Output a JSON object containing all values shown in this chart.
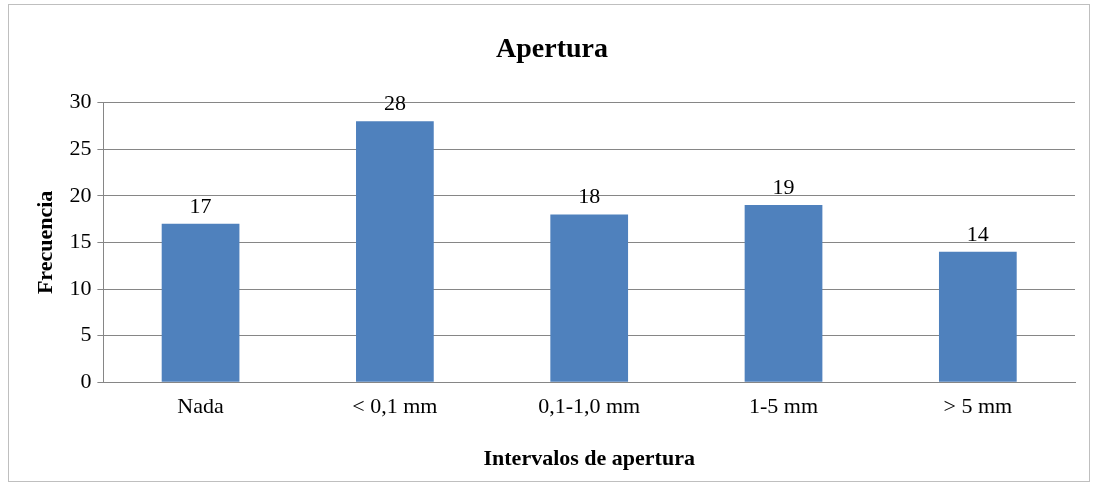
{
  "chart_data": {
    "type": "bar",
    "title": "Apertura",
    "xlabel": "Intervalos de apertura",
    "ylabel": "Frecuencia",
    "categories": [
      "Nada",
      "< 0,1 mm",
      "0,1-1,0 mm",
      "1-5 mm",
      "> 5 mm"
    ],
    "values": [
      17,
      28,
      18,
      19,
      14
    ],
    "color": "#4f81bd",
    "ylim": [
      0,
      30
    ],
    "yticks": [
      0,
      5,
      10,
      15,
      20,
      25,
      30
    ],
    "grid": "y",
    "data_labels": true
  }
}
